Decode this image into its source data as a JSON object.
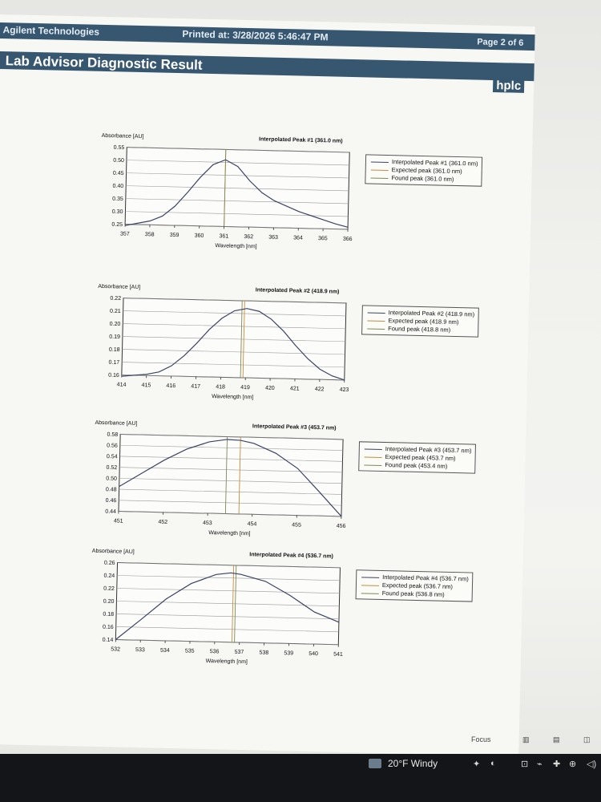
{
  "header": {
    "company": "Agilent Technologies",
    "printed": "Printed at: 3/28/2026 5:46:47 PM",
    "page": "Page 2 of 6",
    "report_title": "Lab Advisor Diagnostic Result",
    "module": "hplc"
  },
  "chart_data": [
    {
      "type": "line",
      "title": "Interpolated Peak #1 (361.0 nm)",
      "ylabel": "Absorbance [AU]",
      "xlabel": "Wavelength [nm]",
      "xlim": [
        357,
        366
      ],
      "ylim": [
        0.25,
        0.55
      ],
      "xticks": [
        "357",
        "358",
        "359",
        "360",
        "361",
        "362",
        "363",
        "364",
        "365",
        "366"
      ],
      "yticks": [
        "0.55",
        "0.50",
        "0.45",
        "0.40",
        "0.35",
        "0.30",
        "0.25"
      ],
      "grid": true,
      "legend_position": "right",
      "series": [
        {
          "name": "Interpolated Peak #1 (361.0 nm)",
          "x": [
            357,
            357.5,
            358,
            358.5,
            359,
            359.5,
            360,
            360.5,
            361,
            361.5,
            362,
            362.5,
            363,
            363.5,
            364,
            364.5,
            365,
            365.5,
            366
          ],
          "values": [
            0.245,
            0.255,
            0.265,
            0.285,
            0.325,
            0.38,
            0.44,
            0.49,
            0.51,
            0.485,
            0.43,
            0.385,
            0.355,
            0.335,
            0.315,
            0.3,
            0.285,
            0.27,
            0.258
          ]
        }
      ],
      "markers": [
        {
          "name": "Expected peak (361.0 nm)",
          "x": 361.0
        },
        {
          "name": "Found peak (361.0 nm)",
          "x": 361.0
        }
      ]
    },
    {
      "type": "line",
      "title": "Interpolated Peak #2 (418.9 nm)",
      "ylabel": "Absorbance [AU]",
      "xlabel": "Wavelength [nm]",
      "xlim": [
        414,
        423
      ],
      "ylim": [
        0.16,
        0.22
      ],
      "xticks": [
        "414",
        "415",
        "416",
        "417",
        "418",
        "419",
        "420",
        "421",
        "422",
        "423"
      ],
      "yticks": [
        "0.22",
        "0.21",
        "0.20",
        "0.19",
        "0.18",
        "0.17",
        "0.16"
      ],
      "grid": true,
      "legend_position": "right",
      "series": [
        {
          "name": "Interpolated Peak #2 (418.9 nm)",
          "x": [
            414,
            414.5,
            415,
            415.5,
            416,
            416.5,
            417,
            417.5,
            418,
            418.5,
            419,
            419.5,
            420,
            420.5,
            421,
            421.5,
            422,
            422.5,
            423
          ],
          "values": [
            0.159,
            0.16,
            0.161,
            0.163,
            0.168,
            0.176,
            0.186,
            0.197,
            0.206,
            0.212,
            0.214,
            0.212,
            0.206,
            0.197,
            0.186,
            0.176,
            0.168,
            0.163,
            0.16
          ]
        }
      ],
      "markers": [
        {
          "name": "Expected peak (418.9 nm)",
          "x": 418.9
        },
        {
          "name": "Found peak (418.8 nm)",
          "x": 418.8
        }
      ]
    },
    {
      "type": "line",
      "title": "Interpolated Peak #3 (453.7 nm)",
      "ylabel": "Absorbance [AU]",
      "xlabel": "Wavelength [nm]",
      "xlim": [
        451,
        456
      ],
      "ylim": [
        0.44,
        0.58
      ],
      "xticks": [
        "451",
        "452",
        "453",
        "454",
        "455",
        "456"
      ],
      "yticks": [
        "0.58",
        "0.56",
        "0.54",
        "0.52",
        "0.50",
        "0.48",
        "0.46",
        "0.44"
      ],
      "grid": true,
      "legend_position": "right",
      "series": [
        {
          "name": "Interpolated Peak #3 (453.7 nm)",
          "x": [
            451,
            451.5,
            452,
            452.5,
            453,
            453.4,
            453.7,
            454,
            454.5,
            455,
            455.5,
            456
          ],
          "values": [
            0.485,
            0.51,
            0.535,
            0.556,
            0.57,
            0.575,
            0.574,
            0.569,
            0.552,
            0.525,
            0.483,
            0.44
          ]
        }
      ],
      "markers": [
        {
          "name": "Expected peak (453.7 nm)",
          "x": 453.7
        },
        {
          "name": "Found peak (453.4 nm)",
          "x": 453.4
        }
      ]
    },
    {
      "type": "line",
      "title": "Interpolated Peak #4 (536.7 nm)",
      "ylabel": "Absorbance [AU]",
      "xlabel": "Wavelength [nm]",
      "xlim": [
        532,
        541
      ],
      "ylim": [
        0.14,
        0.26
      ],
      "xticks": [
        "532",
        "533",
        "534",
        "535",
        "536",
        "537",
        "538",
        "539",
        "540",
        "541"
      ],
      "yticks": [
        "0.26",
        "0.24",
        "0.22",
        "0.20",
        "0.18",
        "0.16",
        "0.14"
      ],
      "grid": true,
      "legend_position": "right",
      "series": [
        {
          "name": "Interpolated Peak #4 (536.7 nm)",
          "x": [
            532,
            533,
            534,
            535,
            536,
            536.6,
            537,
            538,
            539,
            540,
            541
          ],
          "values": [
            0.14,
            0.172,
            0.205,
            0.23,
            0.245,
            0.248,
            0.246,
            0.236,
            0.215,
            0.19,
            0.175
          ]
        }
      ],
      "markers": [
        {
          "name": "Expected peak (536.7 nm)",
          "x": 536.7
        },
        {
          "name": "Found peak (536.8 nm)",
          "x": 536.8
        }
      ]
    }
  ],
  "focus_bar": {
    "focus_label": "Focus"
  },
  "taskbar": {
    "weather": "20°F  Windy"
  },
  "colors": {
    "header_bar": "#37566f",
    "curve": "#3a4466",
    "expected_marker": "#c98a3a",
    "found_marker": "#7d8a55",
    "taskbar": "#141518"
  }
}
